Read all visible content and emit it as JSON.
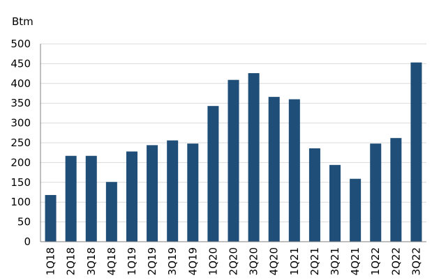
{
  "chart_data": {
    "type": "bar",
    "unit_label": "Btm",
    "categories": [
      "1Q18",
      "2Q18",
      "3Q18",
      "4Q18",
      "1Q19",
      "2Q19",
      "3Q19",
      "4Q19",
      "1Q20",
      "2Q20",
      "3Q20",
      "4Q20",
      "1Q21",
      "2Q21",
      "3Q21",
      "4Q21",
      "1Q22",
      "2Q22",
      "3Q22"
    ],
    "values": [
      118,
      217,
      217,
      151,
      228,
      244,
      256,
      248,
      343,
      409,
      426,
      366,
      360,
      236,
      194,
      159,
      248,
      262,
      453
    ],
    "ylim": [
      0,
      500
    ],
    "yticks": [
      0,
      50,
      100,
      150,
      200,
      250,
      300,
      350,
      400,
      450,
      500
    ],
    "grid": true,
    "legend": "none",
    "bar_color": "#1f4e79",
    "grid_color": "#d9d9d9",
    "axis_color": "#7f7f7f"
  }
}
